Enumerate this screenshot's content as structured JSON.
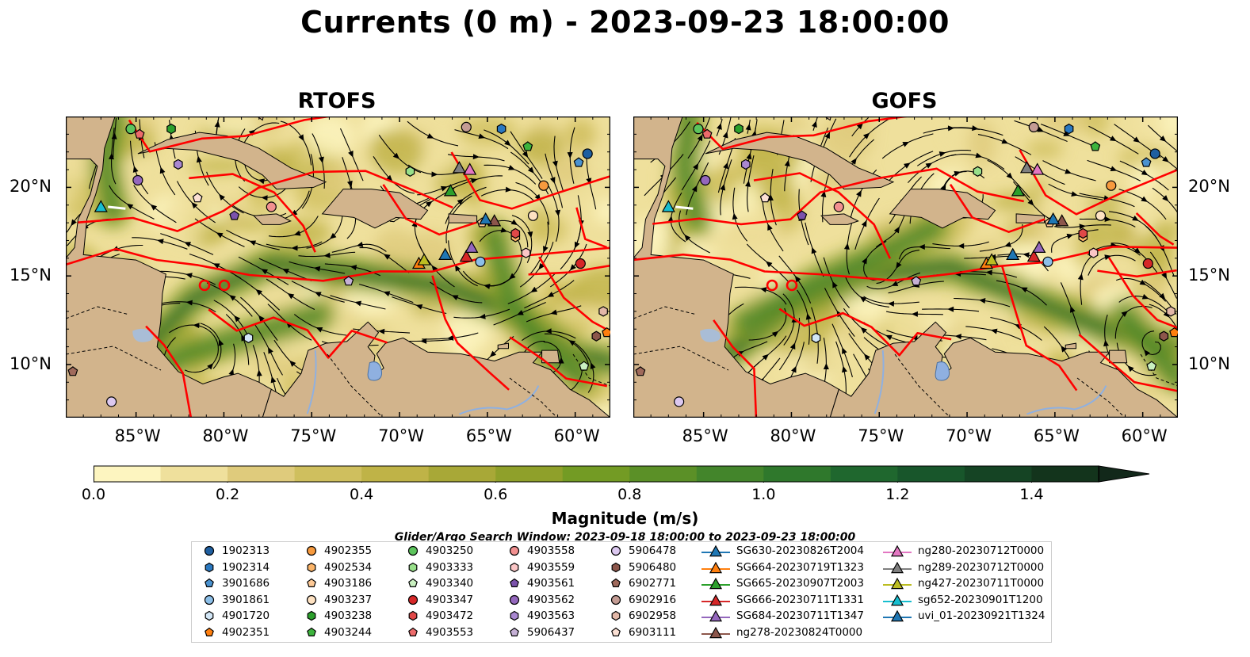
{
  "title": "Currents (0 m) - 2023-09-23 18:00:00",
  "panels": [
    {
      "title": "RTOFS"
    },
    {
      "title": "GOFS"
    }
  ],
  "axes": {
    "lon_ticks": [
      "85°W",
      "80°W",
      "75°W",
      "70°W",
      "65°W",
      "60°W"
    ],
    "lon_values": [
      -85,
      -80,
      -75,
      -70,
      -65,
      -60
    ],
    "lat_ticks": [
      "20°N",
      "15°N",
      "10°N"
    ],
    "lat_values": [
      20,
      15,
      10
    ],
    "lon_range": [
      -89,
      -58
    ],
    "lat_range": [
      7,
      24
    ]
  },
  "colors": {
    "land": "#d2b48c",
    "boundary": "#ff0000",
    "streamline": "#000000",
    "lake": "#8fb0e0"
  },
  "colorbar": {
    "label": "Magnitude (m/s)",
    "ticks": [
      "0.0",
      "0.2",
      "0.4",
      "0.6",
      "0.8",
      "1.0",
      "1.2",
      "1.4"
    ],
    "tick_values": [
      0.0,
      0.2,
      0.4,
      0.6,
      0.8,
      1.0,
      1.2,
      1.4
    ],
    "range": [
      0.0,
      1.5
    ],
    "extend": "max",
    "bin_colors": [
      "#fdf5c0",
      "#efe09c",
      "#dfcb7c",
      "#cfbf5e",
      "#bfb347",
      "#a8a837",
      "#8fa02a",
      "#739b24",
      "#5b9027",
      "#43852b",
      "#2f782c",
      "#1f672e",
      "#18562b",
      "#154424",
      "#13341c"
    ],
    "extend_color": "#12281a"
  },
  "search_window": "Glider/Argo Search Window: 2023-09-18 18:00:00 to 2023-09-23 18:00:00",
  "legend": {
    "columns": [
      [
        {
          "label": "1902313",
          "marker": "circle",
          "color": "#1f5fa0"
        },
        {
          "label": "1902314",
          "marker": "hexagon",
          "color": "#2a78c0"
        },
        {
          "label": "3901686",
          "marker": "pentagon",
          "color": "#4a92d0"
        },
        {
          "label": "3901861",
          "marker": "circle",
          "color": "#8cbfe8"
        },
        {
          "label": "4901720",
          "marker": "hexagon",
          "color": "#d2e6f6"
        },
        {
          "label": "4902351",
          "marker": "pentagon",
          "color": "#ff7f0e"
        }
      ],
      [
        {
          "label": "4902355",
          "marker": "circle",
          "color": "#f79a3e"
        },
        {
          "label": "4902534",
          "marker": "hexagon",
          "color": "#fbb468"
        },
        {
          "label": "4903186",
          "marker": "pentagon",
          "color": "#fdc996"
        },
        {
          "label": "4903237",
          "marker": "circle",
          "color": "#fee2c2"
        },
        {
          "label": "4903238",
          "marker": "hexagon",
          "color": "#2ca02c"
        },
        {
          "label": "4903244",
          "marker": "pentagon",
          "color": "#3db43d"
        }
      ],
      [
        {
          "label": "4903250",
          "marker": "circle",
          "color": "#5cc45c"
        },
        {
          "label": "4903333",
          "marker": "hexagon",
          "color": "#98df8a"
        },
        {
          "label": "4903340",
          "marker": "pentagon",
          "color": "#c9f0c0"
        },
        {
          "label": "4903347",
          "marker": "circle",
          "color": "#d62728"
        },
        {
          "label": "4903472",
          "marker": "hexagon",
          "color": "#e04848"
        },
        {
          "label": "4903553",
          "marker": "pentagon",
          "color": "#ec6b6b"
        }
      ],
      [
        {
          "label": "4903558",
          "marker": "circle",
          "color": "#f29090"
        },
        {
          "label": "4903559",
          "marker": "hexagon",
          "color": "#fbc6c6"
        },
        {
          "label": "4903561",
          "marker": "pentagon",
          "color": "#7b52ab"
        },
        {
          "label": "4903562",
          "marker": "circle",
          "color": "#9467bd"
        },
        {
          "label": "4903563",
          "marker": "hexagon",
          "color": "#a987d0"
        },
        {
          "label": "5906437",
          "marker": "pentagon",
          "color": "#c5b0d5"
        }
      ],
      [
        {
          "label": "5906478",
          "marker": "circle",
          "color": "#dcc8f0"
        },
        {
          "label": "5906480",
          "marker": "hexagon",
          "color": "#8c564b"
        },
        {
          "label": "6902771",
          "marker": "pentagon",
          "color": "#a06a5c"
        },
        {
          "label": "6902916",
          "marker": "circle",
          "color": "#c49c94"
        },
        {
          "label": "6902958",
          "marker": "hexagon",
          "color": "#e3b8a8"
        },
        {
          "label": "6903111",
          "marker": "pentagon",
          "color": "#fbe0d4"
        }
      ],
      [
        {
          "label": "SG630-20230826T2004",
          "marker": "triangle",
          "color": "#1f77b4"
        },
        {
          "label": "SG664-20230719T1323",
          "marker": "triangle",
          "color": "#ff7f0e"
        },
        {
          "label": "SG665-20230907T2003",
          "marker": "triangle",
          "color": "#2ca02c"
        },
        {
          "label": "SG666-20230711T1331",
          "marker": "triangle",
          "color": "#d62728"
        },
        {
          "label": "SG684-20230711T1347",
          "marker": "triangle",
          "color": "#9467bd"
        },
        {
          "label": "ng278-20230824T0000",
          "marker": "triangle",
          "color": "#8c564b"
        }
      ],
      [
        {
          "label": "ng280-20230712T0000",
          "marker": "triangle",
          "color": "#e377c2"
        },
        {
          "label": "ng289-20230712T0000",
          "marker": "triangle",
          "color": "#7f7f7f"
        },
        {
          "label": "ng427-20230711T0000",
          "marker": "triangle",
          "color": "#bcbd22"
        },
        {
          "label": "sg652-20230901T1200",
          "marker": "triangle",
          "color": "#17becf"
        },
        {
          "label": "uvi_01-20230921T1324",
          "marker": "triangle",
          "color": "#1f77b4"
        }
      ]
    ]
  }
}
